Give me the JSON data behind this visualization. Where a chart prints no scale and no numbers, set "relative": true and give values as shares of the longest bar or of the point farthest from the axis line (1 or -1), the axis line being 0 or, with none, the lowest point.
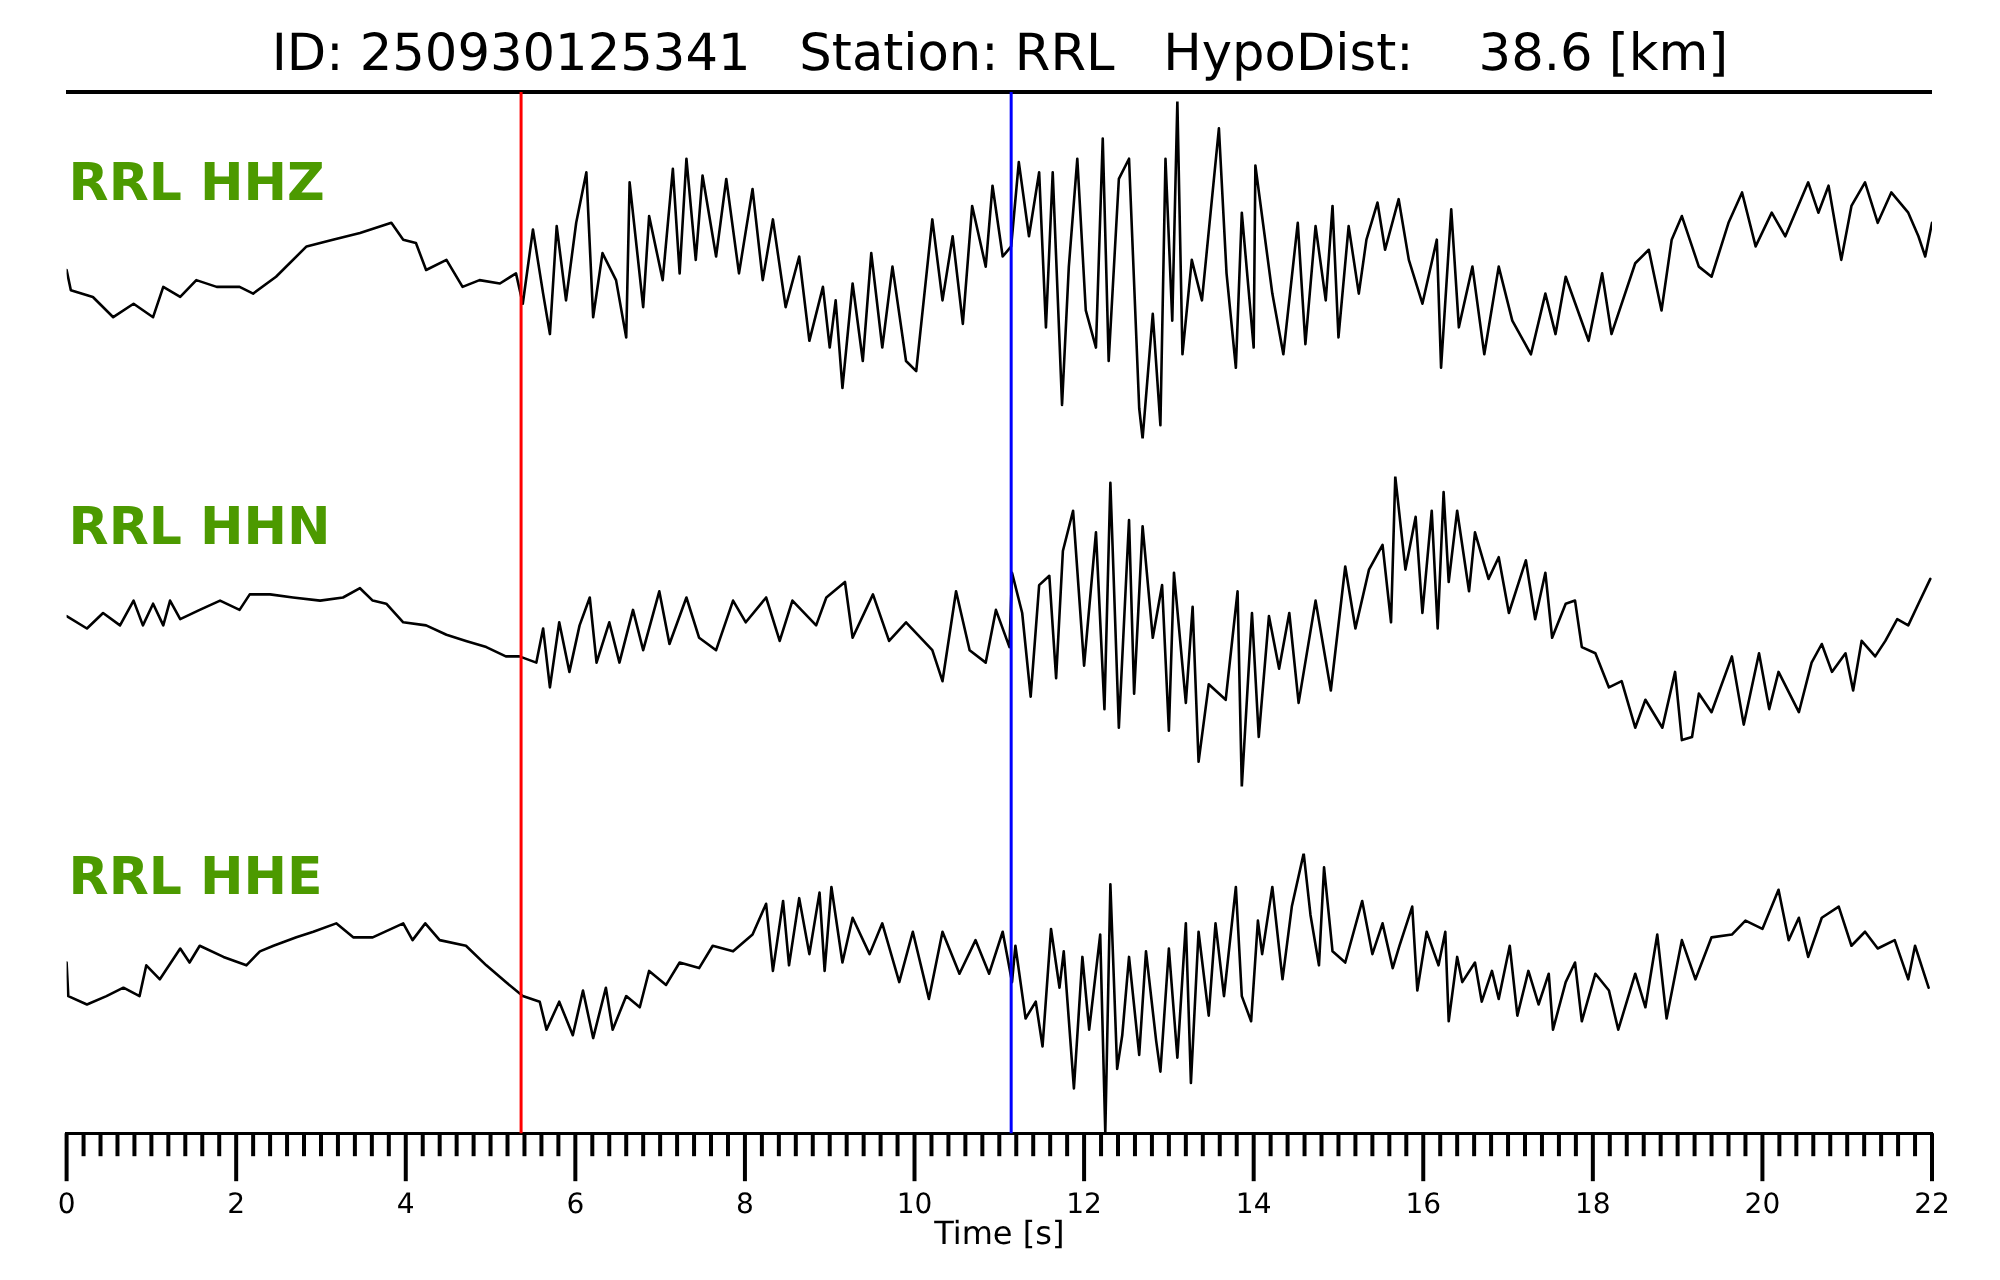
{
  "chart_data": [
    {
      "type": "line",
      "title": "ID: 250930125341   Station: RRL   HypoDist:    38.6 [km]",
      "relative": true,
      "xlim": [
        0,
        22
      ],
      "tick_labels": false,
      "ref_lines": [
        {
          "axis": "x",
          "value": 5.36,
          "color": "#ff0000"
        },
        {
          "axis": "x",
          "value": 11.14,
          "color": "#0000ff"
        }
      ],
      "series": [
        {
          "name": "RRL HHZ",
          "color": "#000000",
          "x": [
            0,
            0.05,
            0.31,
            0.55,
            0.79,
            1.02,
            1.14,
            1.34,
            1.53,
            1.77,
            2.04,
            2.2,
            2.47,
            2.83,
            3.14,
            3.46,
            3.83,
            3.97,
            4.12,
            4.24,
            4.48,
            4.67,
            4.87,
            5.11,
            5.3,
            5.38,
            5.5,
            5.62,
            5.7,
            5.78,
            5.89,
            6.01,
            6.13,
            6.21,
            6.32,
            6.48,
            6.6,
            6.64,
            6.8,
            6.87,
            7.03,
            7.15,
            7.23,
            7.31,
            7.42,
            7.5,
            7.66,
            7.78,
            7.93,
            8.09,
            8.21,
            8.33,
            8.48,
            8.64,
            8.76,
            8.92,
            9,
            9.07,
            9.15,
            9.27,
            9.39,
            9.49,
            9.62,
            9.74,
            9.9,
            10.02,
            10.21,
            10.33,
            10.45,
            10.57,
            10.68,
            10.84,
            10.92,
            11.04,
            11.14,
            11.23,
            11.35,
            11.47,
            11.55,
            11.63,
            11.74,
            11.82,
            11.92,
            12.02,
            12.14,
            12.22,
            12.29,
            12.41,
            12.53,
            12.65,
            12.69,
            12.81,
            12.9,
            12.96,
            13.04,
            13.1,
            13.16,
            13.27,
            13.39,
            13.59,
            13.68,
            13.79,
            13.86,
            14,
            14.02,
            14.22,
            14.35,
            14.52,
            14.61,
            14.73,
            14.85,
            14.93,
            15,
            15.12,
            15.24,
            15.33,
            15.46,
            15.55,
            15.71,
            15.83,
            15.99,
            16.16,
            16.21,
            16.33,
            16.42,
            16.58,
            16.72,
            16.89,
            17.05,
            17.27,
            17.44,
            17.56,
            17.68,
            17.95,
            18.11,
            18.22,
            18.5,
            18.66,
            18.81,
            18.93,
            19.05,
            19.25,
            19.4,
            19.6,
            19.76,
            19.92,
            20.11,
            20.27,
            20.54,
            20.66,
            20.78,
            20.93,
            21.05,
            21.21,
            21.36,
            21.52,
            21.72,
            21.84,
            21.92,
            22
          ],
          "values": [
            0.5,
            0.44,
            0.42,
            0.36,
            0.4,
            0.36,
            0.45,
            0.42,
            0.47,
            0.45,
            0.45,
            0.43,
            0.48,
            0.57,
            0.59,
            0.61,
            0.64,
            0.59,
            0.58,
            0.5,
            0.53,
            0.45,
            0.47,
            0.46,
            0.49,
            0.4,
            0.62,
            0.43,
            0.31,
            0.63,
            0.41,
            0.64,
            0.79,
            0.36,
            0.55,
            0.47,
            0.3,
            0.76,
            0.39,
            0.66,
            0.47,
            0.8,
            0.49,
            0.83,
            0.53,
            0.78,
            0.54,
            0.77,
            0.49,
            0.74,
            0.47,
            0.65,
            0.39,
            0.54,
            0.29,
            0.45,
            0.27,
            0.41,
            0.15,
            0.46,
            0.23,
            0.55,
            0.27,
            0.51,
            0.23,
            0.2,
            0.65,
            0.41,
            0.6,
            0.34,
            0.69,
            0.51,
            0.75,
            0.54,
            0.57,
            0.82,
            0.6,
            0.79,
            0.33,
            0.79,
            0.1,
            0.51,
            0.83,
            0.38,
            0.27,
            0.89,
            0.23,
            0.77,
            0.83,
            0.09,
            0,
            0.37,
            0.04,
            0.83,
            0.35,
            1,
            0.25,
            0.53,
            0.41,
            0.92,
            0.49,
            0.21,
            0.67,
            0.27,
            0.81,
            0.43,
            0.25,
            0.64,
            0.28,
            0.63,
            0.41,
            0.69,
            0.3,
            0.63,
            0.43,
            0.59,
            0.7,
            0.56,
            0.71,
            0.53,
            0.4,
            0.59,
            0.21,
            0.68,
            0.33,
            0.51,
            0.25,
            0.51,
            0.35,
            0.25,
            0.43,
            0.31,
            0.48,
            0.29,
            0.49,
            0.31,
            0.52,
            0.56,
            0.38,
            0.59,
            0.66,
            0.51,
            0.48,
            0.64,
            0.73,
            0.57,
            0.67,
            0.6,
            0.76,
            0.67,
            0.75,
            0.53,
            0.69,
            0.76,
            0.64,
            0.73,
            0.67,
            0.6,
            0.54,
            0.64
          ]
        }
      ]
    },
    {
      "type": "line",
      "relative": true,
      "xlim": [
        0,
        22
      ],
      "tick_labels": false,
      "ref_lines": [
        {
          "axis": "x",
          "value": 5.36,
          "color": "#ff0000"
        },
        {
          "axis": "x",
          "value": 11.14,
          "color": "#0000ff"
        }
      ],
      "series": [
        {
          "name": "RRL HHN",
          "color": "#000000",
          "x": [
            0,
            0.24,
            0.43,
            0.63,
            0.79,
            0.9,
            1.02,
            1.14,
            1.22,
            1.34,
            1.57,
            1.81,
            2.04,
            2.16,
            2.4,
            2.67,
            2.99,
            3.26,
            3.46,
            3.61,
            3.77,
            3.97,
            4.24,
            4.48,
            4.71,
            4.95,
            5.18,
            5.34,
            5.54,
            5.62,
            5.7,
            5.81,
            5.93,
            6.05,
            6.17,
            6.25,
            6.4,
            6.52,
            6.68,
            6.8,
            6.99,
            7.11,
            7.31,
            7.46,
            7.66,
            7.86,
            8.01,
            8.25,
            8.41,
            8.56,
            8.84,
            8.96,
            9.18,
            9.27,
            9.51,
            9.7,
            9.9,
            10.21,
            10.33,
            10.49,
            10.65,
            10.84,
            10.96,
            11.12,
            11.15,
            11.27,
            11.37,
            11.47,
            11.59,
            11.67,
            11.75,
            11.87,
            12,
            12.14,
            12.24,
            12.31,
            12.41,
            12.53,
            12.59,
            12.69,
            12.81,
            12.92,
            13,
            13.06,
            13.2,
            13.28,
            13.35,
            13.47,
            13.67,
            13.81,
            13.86,
            13.98,
            14.06,
            14.18,
            14.3,
            14.42,
            14.53,
            14.73,
            14.91,
            15.08,
            15.2,
            15.36,
            15.52,
            15.62,
            15.67,
            15.79,
            15.91,
            15.99,
            16.1,
            16.17,
            16.24,
            16.3,
            16.4,
            16.54,
            16.61,
            16.77,
            16.89,
            17.01,
            17.21,
            17.32,
            17.44,
            17.52,
            17.68,
            17.79,
            17.87,
            18.03,
            18.19,
            18.34,
            18.5,
            18.62,
            18.82,
            18.97,
            19.05,
            19.17,
            19.25,
            19.4,
            19.64,
            19.78,
            19.96,
            20.08,
            20.19,
            20.43,
            20.58,
            20.7,
            20.82,
            20.98,
            21.07,
            21.17,
            21.33,
            21.45,
            21.59,
            21.72,
            21.84,
            21.98
          ],
          "values": [
            0.55,
            0.51,
            0.56,
            0.52,
            0.6,
            0.52,
            0.59,
            0.52,
            0.6,
            0.54,
            0.57,
            0.6,
            0.57,
            0.62,
            0.62,
            0.61,
            0.6,
            0.61,
            0.64,
            0.6,
            0.59,
            0.53,
            0.52,
            0.49,
            0.47,
            0.45,
            0.42,
            0.42,
            0.4,
            0.51,
            0.32,
            0.53,
            0.37,
            0.52,
            0.61,
            0.4,
            0.53,
            0.4,
            0.57,
            0.44,
            0.63,
            0.46,
            0.61,
            0.48,
            0.44,
            0.6,
            0.53,
            0.61,
            0.47,
            0.6,
            0.52,
            0.61,
            0.66,
            0.48,
            0.62,
            0.47,
            0.53,
            0.44,
            0.34,
            0.63,
            0.44,
            0.4,
            0.57,
            0.45,
            0.69,
            0.56,
            0.29,
            0.65,
            0.68,
            0.35,
            0.76,
            0.89,
            0.39,
            0.82,
            0.25,
            0.98,
            0.19,
            0.86,
            0.3,
            0.84,
            0.48,
            0.65,
            0.18,
            0.69,
            0.27,
            0.58,
            0.08,
            0.33,
            0.28,
            0.63,
            0,
            0.56,
            0.16,
            0.55,
            0.38,
            0.56,
            0.27,
            0.6,
            0.31,
            0.71,
            0.51,
            0.7,
            0.78,
            0.53,
            1,
            0.7,
            0.87,
            0.56,
            0.89,
            0.51,
            0.95,
            0.66,
            0.89,
            0.63,
            0.82,
            0.67,
            0.74,
            0.56,
            0.73,
            0.54,
            0.69,
            0.48,
            0.59,
            0.6,
            0.45,
            0.43,
            0.32,
            0.34,
            0.19,
            0.28,
            0.19,
            0.37,
            0.15,
            0.16,
            0.3,
            0.24,
            0.42,
            0.2,
            0.43,
            0.25,
            0.37,
            0.24,
            0.4,
            0.46,
            0.37,
            0.43,
            0.31,
            0.47,
            0.42,
            0.47,
            0.54,
            0.52,
            0.59,
            0.67
          ]
        }
      ]
    },
    {
      "type": "line",
      "relative": true,
      "xlabel": "Time [s]",
      "xlim": [
        0,
        22
      ],
      "tick_labels": "x",
      "xticks": [
        0,
        {
          "value": 0.2,
          "label": null
        },
        {
          "value": 0.4,
          "label": null
        },
        {
          "value": 0.6,
          "label": null
        },
        {
          "value": 0.8,
          "label": null
        },
        {
          "value": 1,
          "label": null
        },
        {
          "value": 1.2,
          "label": null
        },
        {
          "value": 1.4,
          "label": null
        },
        {
          "value": 1.6,
          "label": null
        },
        {
          "value": 1.8,
          "label": null
        },
        2,
        {
          "value": 2.2,
          "label": null
        },
        {
          "value": 2.4,
          "label": null
        },
        {
          "value": 2.6,
          "label": null
        },
        {
          "value": 2.8,
          "label": null
        },
        {
          "value": 3,
          "label": null
        },
        {
          "value": 3.2,
          "label": null
        },
        {
          "value": 3.4,
          "label": null
        },
        {
          "value": 3.6,
          "label": null
        },
        {
          "value": 3.8,
          "label": null
        },
        4,
        {
          "value": 4.2,
          "label": null
        },
        {
          "value": 4.4,
          "label": null
        },
        {
          "value": 4.6,
          "label": null
        },
        {
          "value": 4.8,
          "label": null
        },
        {
          "value": 5,
          "label": null
        },
        {
          "value": 5.2,
          "label": null
        },
        {
          "value": 5.4,
          "label": null
        },
        {
          "value": 5.6,
          "label": null
        },
        {
          "value": 5.8,
          "label": null
        },
        6,
        {
          "value": 6.2,
          "label": null
        },
        {
          "value": 6.4,
          "label": null
        },
        {
          "value": 6.6,
          "label": null
        },
        {
          "value": 6.8,
          "label": null
        },
        {
          "value": 7,
          "label": null
        },
        {
          "value": 7.2,
          "label": null
        },
        {
          "value": 7.4,
          "label": null
        },
        {
          "value": 7.6,
          "label": null
        },
        {
          "value": 7.8,
          "label": null
        },
        8,
        {
          "value": 8.2,
          "label": null
        },
        {
          "value": 8.4,
          "label": null
        },
        {
          "value": 8.6,
          "label": null
        },
        {
          "value": 8.8,
          "label": null
        },
        {
          "value": 9,
          "label": null
        },
        {
          "value": 9.2,
          "label": null
        },
        {
          "value": 9.4,
          "label": null
        },
        {
          "value": 9.6,
          "label": null
        },
        {
          "value": 9.8,
          "label": null
        },
        10,
        {
          "value": 10.2,
          "label": null
        },
        {
          "value": 10.4,
          "label": null
        },
        {
          "value": 10.6,
          "label": null
        },
        {
          "value": 10.8,
          "label": null
        },
        {
          "value": 11,
          "label": null
        },
        {
          "value": 11.2,
          "label": null
        },
        {
          "value": 11.4,
          "label": null
        },
        {
          "value": 11.6,
          "label": null
        },
        {
          "value": 11.8,
          "label": null
        },
        12,
        {
          "value": 12.2,
          "label": null
        },
        {
          "value": 12.4,
          "label": null
        },
        {
          "value": 12.6,
          "label": null
        },
        {
          "value": 12.8,
          "label": null
        },
        {
          "value": 13,
          "label": null
        },
        {
          "value": 13.2,
          "label": null
        },
        {
          "value": 13.4,
          "label": null
        },
        {
          "value": 13.6,
          "label": null
        },
        {
          "value": 13.8,
          "label": null
        },
        14,
        {
          "value": 14.2,
          "label": null
        },
        {
          "value": 14.4,
          "label": null
        },
        {
          "value": 14.6,
          "label": null
        },
        {
          "value": 14.8,
          "label": null
        },
        {
          "value": 15,
          "label": null
        },
        {
          "value": 15.2,
          "label": null
        },
        {
          "value": 15.4,
          "label": null
        },
        {
          "value": 15.6,
          "label": null
        },
        {
          "value": 15.8,
          "label": null
        },
        16,
        {
          "value": 16.2,
          "label": null
        },
        {
          "value": 16.4,
          "label": null
        },
        {
          "value": 16.6,
          "label": null
        },
        {
          "value": 16.8,
          "label": null
        },
        {
          "value": 17,
          "label": null
        },
        {
          "value": 17.2,
          "label": null
        },
        {
          "value": 17.4,
          "label": null
        },
        {
          "value": 17.6,
          "label": null
        },
        {
          "value": 17.8,
          "label": null
        },
        18,
        {
          "value": 18.2,
          "label": null
        },
        {
          "value": 18.4,
          "label": null
        },
        {
          "value": 18.6,
          "label": null
        },
        {
          "value": 18.8,
          "label": null
        },
        {
          "value": 19,
          "label": null
        },
        {
          "value": 19.2,
          "label": null
        },
        {
          "value": 19.4,
          "label": null
        },
        {
          "value": 19.6,
          "label": null
        },
        {
          "value": 19.8,
          "label": null
        },
        20,
        {
          "value": 20.2,
          "label": null
        },
        {
          "value": 20.4,
          "label": null
        },
        {
          "value": 20.6,
          "label": null
        },
        {
          "value": 20.8,
          "label": null
        },
        {
          "value": 21,
          "label": null
        },
        {
          "value": 21.2,
          "label": null
        },
        {
          "value": 21.4,
          "label": null
        },
        {
          "value": 21.6,
          "label": null
        },
        {
          "value": 21.8,
          "label": null
        },
        22
      ],
      "ref_lines": [
        {
          "axis": "x",
          "value": 5.36,
          "color": "#ff0000"
        },
        {
          "axis": "x",
          "value": 11.14,
          "color": "#0000ff"
        }
      ],
      "series": [
        {
          "name": "RRL HHE",
          "color": "#000000",
          "x": [
            0,
            0.02,
            0.24,
            0.47,
            0.67,
            0.86,
            0.94,
            1.1,
            1.34,
            1.45,
            1.57,
            1.85,
            2.12,
            2.28,
            2.44,
            2.71,
            2.91,
            3.18,
            3.38,
            3.61,
            3.97,
            4.08,
            4.23,
            4.4,
            4.71,
            4.95,
            5.18,
            5.38,
            5.58,
            5.66,
            5.81,
            5.97,
            6.09,
            6.21,
            6.36,
            6.44,
            6.6,
            6.76,
            6.87,
            7.07,
            7.23,
            7.46,
            7.62,
            7.86,
            8.09,
            8.25,
            8.33,
            8.45,
            8.52,
            8.64,
            8.76,
            8.88,
            8.94,
            9.02,
            9.15,
            9.27,
            9.47,
            9.62,
            9.82,
            9.98,
            10.17,
            10.33,
            10.53,
            10.72,
            10.88,
            11.04,
            11.15,
            11.19,
            11.31,
            11.43,
            11.51,
            11.61,
            11.71,
            11.76,
            11.88,
            11.98,
            12.06,
            12.19,
            12.25,
            12.31,
            12.39,
            12.45,
            12.53,
            12.65,
            12.73,
            12.85,
            12.9,
            13,
            13.1,
            13.2,
            13.26,
            13.35,
            13.47,
            13.55,
            13.65,
            13.79,
            13.86,
            13.97,
            14.05,
            14.1,
            14.22,
            14.34,
            14.45,
            14.59,
            14.67,
            14.77,
            14.83,
            14.93,
            15.08,
            15.28,
            15.4,
            15.52,
            15.64,
            15.72,
            15.87,
            15.93,
            16.04,
            16.18,
            16.26,
            16.3,
            16.4,
            16.46,
            16.61,
            16.69,
            16.81,
            16.89,
            17.02,
            17.11,
            17.24,
            17.36,
            17.48,
            17.53,
            17.68,
            17.79,
            17.87,
            18.03,
            18.19,
            18.3,
            18.5,
            18.62,
            18.76,
            18.87,
            19.05,
            19.21,
            19.4,
            19.64,
            19.8,
            20,
            20.19,
            20.31,
            20.43,
            20.54,
            20.7,
            20.9,
            21.05,
            21.21,
            21.36,
            21.56,
            21.72,
            21.8,
            21.96
          ],
          "values": [
            0.61,
            0.49,
            0.46,
            0.49,
            0.52,
            0.49,
            0.6,
            0.55,
            0.66,
            0.61,
            0.67,
            0.63,
            0.6,
            0.65,
            0.67,
            0.7,
            0.72,
            0.75,
            0.7,
            0.7,
            0.75,
            0.69,
            0.75,
            0.69,
            0.67,
            0.6,
            0.54,
            0.49,
            0.47,
            0.37,
            0.47,
            0.35,
            0.51,
            0.34,
            0.52,
            0.37,
            0.49,
            0.45,
            0.58,
            0.53,
            0.61,
            0.59,
            0.67,
            0.65,
            0.71,
            0.82,
            0.58,
            0.83,
            0.6,
            0.84,
            0.64,
            0.86,
            0.58,
            0.88,
            0.61,
            0.77,
            0.64,
            0.75,
            0.54,
            0.72,
            0.48,
            0.72,
            0.57,
            0.69,
            0.57,
            0.72,
            0.54,
            0.67,
            0.41,
            0.47,
            0.31,
            0.73,
            0.52,
            0.65,
            0.16,
            0.63,
            0.37,
            0.71,
            0,
            0.89,
            0.23,
            0.35,
            0.63,
            0.28,
            0.65,
            0.33,
            0.22,
            0.66,
            0.27,
            0.75,
            0.18,
            0.72,
            0.42,
            0.75,
            0.49,
            0.88,
            0.49,
            0.4,
            0.76,
            0.64,
            0.88,
            0.55,
            0.81,
            1,
            0.78,
            0.6,
            0.95,
            0.65,
            0.61,
            0.83,
            0.64,
            0.75,
            0.59,
            0.67,
            0.81,
            0.51,
            0.72,
            0.6,
            0.72,
            0.4,
            0.63,
            0.54,
            0.61,
            0.47,
            0.58,
            0.48,
            0.67,
            0.42,
            0.58,
            0.46,
            0.57,
            0.37,
            0.54,
            0.61,
            0.4,
            0.57,
            0.51,
            0.37,
            0.57,
            0.45,
            0.71,
            0.41,
            0.69,
            0.55,
            0.7,
            0.71,
            0.76,
            0.73,
            0.87,
            0.69,
            0.77,
            0.63,
            0.77,
            0.81,
            0.67,
            0.72,
            0.66,
            0.69,
            0.55,
            0.67,
            0.52
          ]
        }
      ]
    }
  ]
}
